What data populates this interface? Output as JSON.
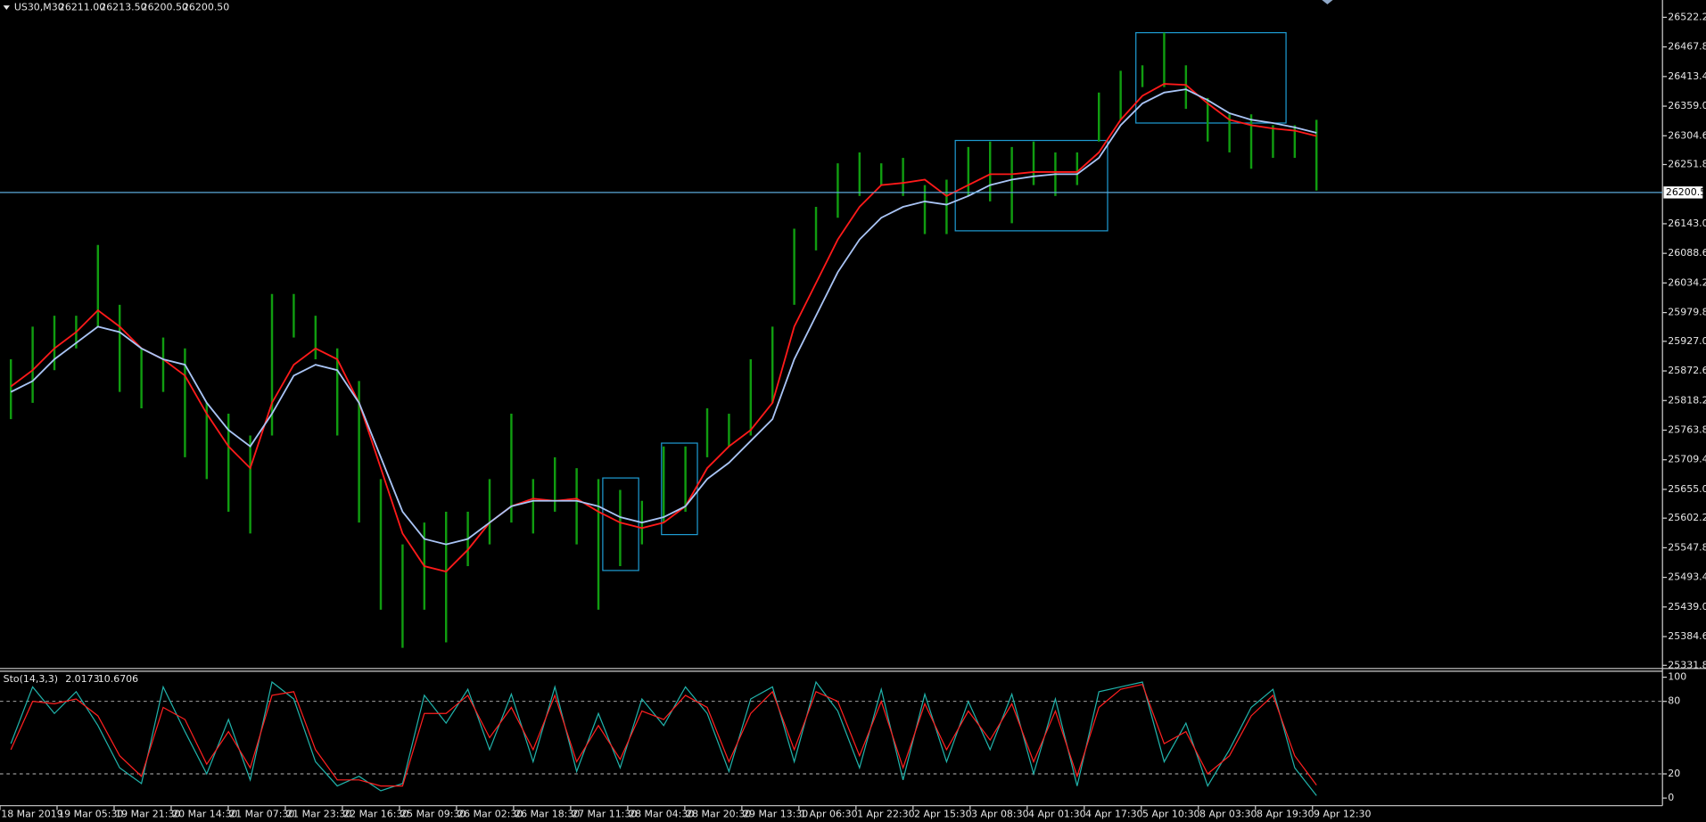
{
  "chart_data": [
    {
      "type": "hilo",
      "title": "US30,M30",
      "ohlc_labels": [
        "26211.00",
        "26213.50",
        "26200.50",
        "26200.50"
      ],
      "color": "#109c10",
      "high": [
        25894,
        25954,
        25974,
        25974,
        26104,
        25994,
        25914,
        25934,
        25914,
        25814,
        25794,
        25754,
        26014,
        26014,
        25974,
        25914,
        25854,
        25674,
        25554,
        25594,
        25614,
        25614,
        25674,
        25794,
        25674,
        25714,
        25694,
        25674,
        25654,
        25634,
        25734,
        25734,
        25804,
        25794,
        25894,
        25954,
        26134,
        26174,
        26254,
        26274,
        26254,
        26264,
        26214,
        26224,
        26284,
        26294,
        26284,
        26294,
        26274,
        26274,
        26384,
        26424,
        26434,
        26494,
        26434,
        26374,
        26344,
        26344,
        26324,
        26324,
        26334
      ],
      "low": [
        25784,
        25814,
        25874,
        25914,
        25954,
        25834,
        25804,
        25834,
        25714,
        25674,
        25614,
        25574,
        25754,
        25934,
        25894,
        25754,
        25594,
        25434,
        25364,
        25434,
        25374,
        25514,
        25554,
        25594,
        25574,
        25614,
        25554,
        25434,
        25514,
        25554,
        25594,
        25614,
        25714,
        25734,
        25754,
        25814,
        25994,
        26094,
        26154,
        26194,
        26214,
        26194,
        26124,
        26124,
        26194,
        26184,
        26144,
        26214,
        26194,
        26214,
        26294,
        26334,
        26394,
        26394,
        26354,
        26294,
        26274,
        26244,
        26264,
        26264,
        26204
      ],
      "ma": [
        {
          "color": "#ff1a1a",
          "values": [
            25844,
            25874,
            25914,
            25944,
            25984,
            25954,
            25914,
            25894,
            25864,
            25794,
            25734,
            25694,
            25814,
            25884,
            25914,
            25894,
            25814,
            25694,
            25574,
            25514,
            25504,
            25544,
            25594,
            25624,
            25638,
            25634,
            25638,
            25614,
            25594,
            25584,
            25594,
            25624,
            25694,
            25734,
            25764,
            25814,
            25954,
            26034,
            26114,
            26174,
            26214,
            26218,
            26224,
            26194,
            26214,
            26234,
            26234,
            26238,
            26238,
            26238,
            26274,
            26334,
            26378,
            26400,
            26398,
            26364,
            26334,
            26324,
            26318,
            26314,
            26304
          ]
        },
        {
          "color": "#a9c4f5",
          "values": [
            25834,
            25854,
            25894,
            25924,
            25954,
            25944,
            25914,
            25894,
            25884,
            25814,
            25764,
            25734,
            25794,
            25864,
            25884,
            25874,
            25814,
            25714,
            25614,
            25564,
            25554,
            25564,
            25594,
            25624,
            25634,
            25634,
            25634,
            25624,
            25604,
            25594,
            25604,
            25624,
            25674,
            25704,
            25744,
            25784,
            25894,
            25974,
            26054,
            26114,
            26154,
            26174,
            26184,
            26178,
            26194,
            26214,
            26224,
            26230,
            26234,
            26234,
            26264,
            26324,
            26364,
            26384,
            26390,
            26370,
            26346,
            26334,
            26328,
            26320,
            26310
          ]
        }
      ],
      "current_price": {
        "value": 26200.5,
        "label": "26200.50"
      },
      "ylim": [
        25328,
        26554
      ],
      "yticks": [
        {
          "value": 26522.2,
          "label": "26522.20"
        },
        {
          "value": 26467.8,
          "label": "26467.80"
        },
        {
          "value": 26413.4,
          "label": "26413.40"
        },
        {
          "value": 26359,
          "label": "26359.00"
        },
        {
          "value": 26304.6,
          "label": "26304.60"
        },
        {
          "value": 26251.8,
          "label": "26251.80"
        },
        {
          "value": 26143,
          "label": "26143.00"
        },
        {
          "value": 26088.6,
          "label": "26088.60"
        },
        {
          "value": 26034.2,
          "label": "26034.20"
        },
        {
          "value": 25979.8,
          "label": "25979.80"
        },
        {
          "value": 25927,
          "label": "25927.00"
        },
        {
          "value": 25872.6,
          "label": "25872.60"
        },
        {
          "value": 25818.2,
          "label": "25818.20"
        },
        {
          "value": 25763.8,
          "label": "25763.80"
        },
        {
          "value": 25709.4,
          "label": "25709.40"
        },
        {
          "value": 25655,
          "label": "25655.00"
        },
        {
          "value": 25602.2,
          "label": "25602.20"
        },
        {
          "value": 25547.8,
          "label": "25547.80"
        },
        {
          "value": 25493.4,
          "label": "25493.40"
        },
        {
          "value": 25439,
          "label": "25439.00"
        },
        {
          "value": 25384.6,
          "label": "25384.60"
        },
        {
          "value": 25331.8,
          "label": "25331.80"
        }
      ],
      "x_labels": [
        "18 Mar 2019",
        "19 Mar 05:30",
        "19 Mar 21:30",
        "20 Mar 14:30",
        "21 Mar 07:30",
        "21 Mar 23:30",
        "22 Mar 16:30",
        "25 Mar 09:30",
        "26 Mar 02:30",
        "26 Mar 18:30",
        "27 Mar 11:30",
        "28 Mar 04:30",
        "28 Mar 20:30",
        "29 Mar 13:30",
        "1 Apr 06:30",
        "1 Apr 22:30",
        "2 Apr 15:30",
        "3 Apr 08:30",
        "4 Apr 01:30",
        "4 Apr 17:30",
        "5 Apr 10:30",
        "8 Apr 03:30",
        "8 Apr 19:30",
        "9 Apr 12:30"
      ]
    },
    {
      "type": "line",
      "title": "Sto(14,3,3)",
      "series": [
        {
          "color": "#20b2aa",
          "values": [
            45,
            92,
            70,
            88,
            60,
            25,
            12,
            92,
            55,
            20,
            65,
            15,
            96,
            82,
            30,
            10,
            18,
            6,
            12,
            85,
            62,
            90,
            40,
            86,
            30,
            92,
            22,
            70,
            25,
            82,
            60,
            92,
            70,
            22,
            82,
            92,
            30,
            96,
            72,
            25,
            90,
            15,
            86,
            30,
            80,
            40,
            86,
            20,
            82,
            10,
            88,
            92,
            96,
            30,
            62,
            10,
            40,
            75,
            90,
            25,
            2.0173
          ]
        },
        {
          "color": "#ff2020",
          "values": [
            40,
            80,
            78,
            82,
            68,
            35,
            18,
            75,
            65,
            28,
            55,
            25,
            85,
            88,
            40,
            15,
            15,
            10,
            10,
            70,
            70,
            85,
            50,
            75,
            40,
            85,
            30,
            60,
            32,
            72,
            65,
            85,
            75,
            30,
            70,
            88,
            40,
            88,
            80,
            35,
            80,
            25,
            78,
            40,
            72,
            48,
            78,
            30,
            72,
            18,
            75,
            90,
            94,
            45,
            55,
            20,
            35,
            68,
            85,
            35,
            10.6706
          ]
        }
      ],
      "ylim": [
        0,
        100
      ],
      "yticks": [
        0,
        20,
        80,
        100
      ],
      "levels": [
        20,
        80
      ]
    }
  ]
}
